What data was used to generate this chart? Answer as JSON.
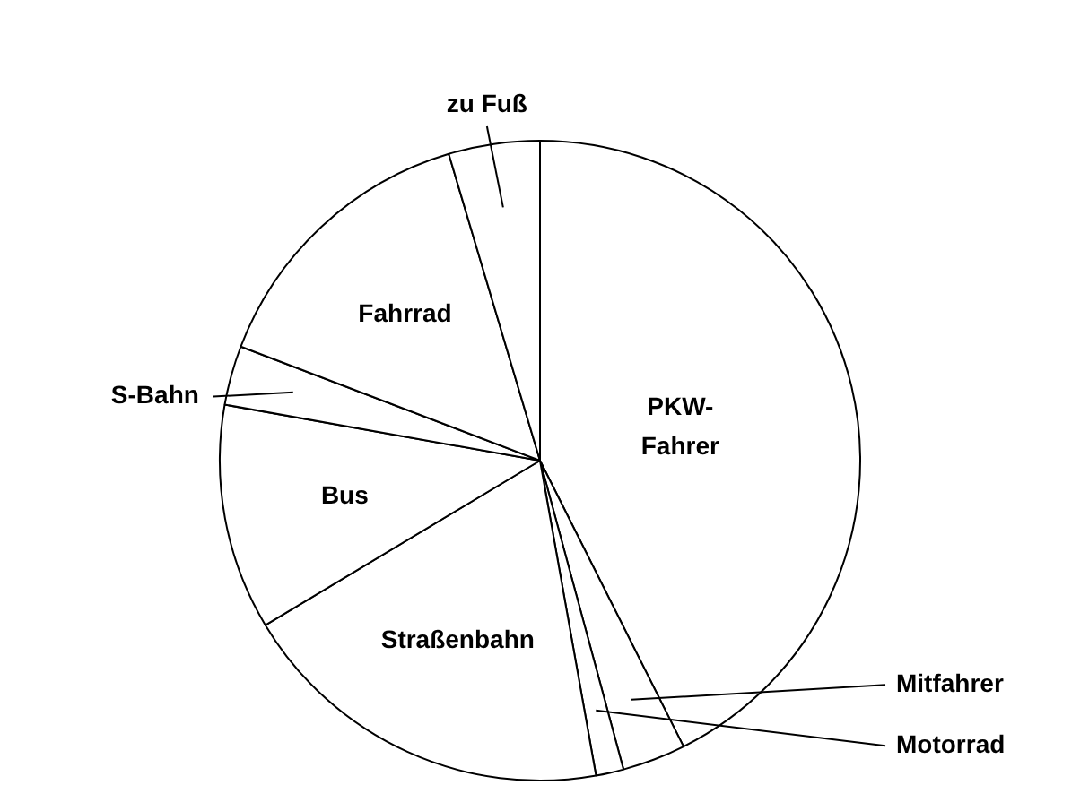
{
  "chart_data": {
    "type": "pie",
    "categories": [
      "PKW-Fahrer",
      "Mitfahrer",
      "Motorrad",
      "Straßenbahn",
      "Bus",
      "S-Bahn",
      "Fahrrad",
      "zu Fuß"
    ],
    "values": [
      42.6,
      3.2,
      1.4,
      19.2,
      11.4,
      3.0,
      14.6,
      4.6
    ],
    "colors": [
      "#ffffff",
      "#ffffff",
      "#ffffff",
      "#ffffff",
      "#ffffff",
      "#ffffff",
      "#ffffff",
      "#ffffff"
    ],
    "legend": false
  }
}
